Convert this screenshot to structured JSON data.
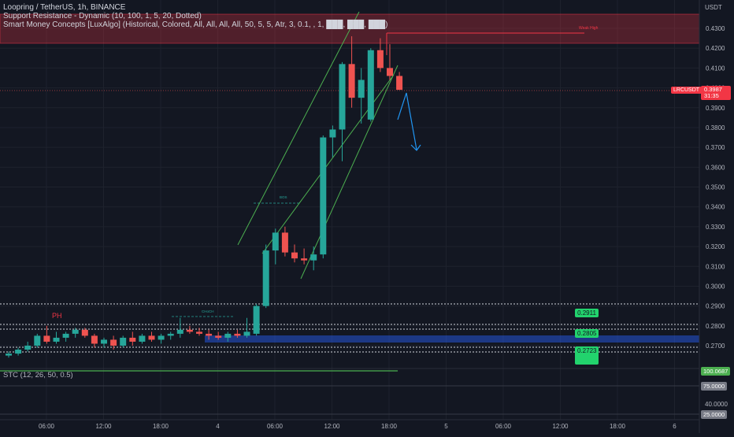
{
  "legend": {
    "title": "Loopring / TetherUS, 1h, BINANCE",
    "indicator1": "Support Resistance - Dynamic (10, 100, 1, 5, 20, Dotted)",
    "indicator2": "Smart Money Concepts [LuxAlgo] (Historical, Colored, All, All, All, All, 50, 5, 5, Atr, 3, 0.1, , 1, ███, ███, ███)"
  },
  "currency": "USDT",
  "symbol_tag": "LRCUSDT",
  "last_price": "0.3987",
  "countdown": "31:35",
  "weak_high_label": "Weak High",
  "ph_label": "PH",
  "bos_label_upper": "BOS",
  "choch_label": "CHoCH",
  "stc": {
    "label": "STC (12, 26, 50, 0.5)",
    "value_tag": "100.0687",
    "level_75": "75.0000",
    "level_25": "25.0000",
    "tick_40": "40.0000"
  },
  "sr_tags": [
    "0.2911",
    "0.2805",
    "0.2723"
  ],
  "price_ticks": [
    "0.4300",
    "0.4200",
    "0.4100",
    "0.4000",
    "0.3900",
    "0.3800",
    "0.3700",
    "0.3600",
    "0.3500",
    "0.3400",
    "0.3300",
    "0.3200",
    "0.3100",
    "0.3000",
    "0.2900",
    "0.2800",
    "0.2700"
  ],
  "time_ticks": [
    "06:00",
    "12:00",
    "18:00",
    "4",
    "06:00",
    "12:00",
    "18:00",
    "5",
    "06:00",
    "12:00",
    "18:00",
    "6"
  ],
  "colors": {
    "up": "#26a69a",
    "down": "#ef5350",
    "channel": "#4caf50",
    "zone": "#f23645",
    "bull_zone": "#2962ff",
    "arrow": "#2196f3",
    "sr_green": "#22d36d"
  },
  "chart_data": {
    "type": "candlestick",
    "symbol": "LRCUSDT",
    "timeframe": "1h",
    "ylim": [
      0.262,
      0.441
    ],
    "candles": [
      {
        "o": 0.265,
        "h": 0.267,
        "l": 0.264,
        "c": 0.266
      },
      {
        "o": 0.266,
        "h": 0.269,
        "l": 0.265,
        "c": 0.268
      },
      {
        "o": 0.268,
        "h": 0.272,
        "l": 0.267,
        "c": 0.27
      },
      {
        "o": 0.27,
        "h": 0.276,
        "l": 0.269,
        "c": 0.275
      },
      {
        "o": 0.275,
        "h": 0.28,
        "l": 0.271,
        "c": 0.272
      },
      {
        "o": 0.272,
        "h": 0.277,
        "l": 0.271,
        "c": 0.274
      },
      {
        "o": 0.274,
        "h": 0.277,
        "l": 0.272,
        "c": 0.276
      },
      {
        "o": 0.276,
        "h": 0.279,
        "l": 0.274,
        "c": 0.278
      },
      {
        "o": 0.278,
        "h": 0.279,
        "l": 0.274,
        "c": 0.275
      },
      {
        "o": 0.275,
        "h": 0.276,
        "l": 0.269,
        "c": 0.271
      },
      {
        "o": 0.271,
        "h": 0.274,
        "l": 0.269,
        "c": 0.273
      },
      {
        "o": 0.273,
        "h": 0.275,
        "l": 0.268,
        "c": 0.27
      },
      {
        "o": 0.27,
        "h": 0.275,
        "l": 0.269,
        "c": 0.274
      },
      {
        "o": 0.274,
        "h": 0.277,
        "l": 0.27,
        "c": 0.272
      },
      {
        "o": 0.272,
        "h": 0.276,
        "l": 0.271,
        "c": 0.275
      },
      {
        "o": 0.275,
        "h": 0.277,
        "l": 0.272,
        "c": 0.273
      },
      {
        "o": 0.273,
        "h": 0.276,
        "l": 0.271,
        "c": 0.275
      },
      {
        "o": 0.275,
        "h": 0.277,
        "l": 0.273,
        "c": 0.276
      },
      {
        "o": 0.276,
        "h": 0.284,
        "l": 0.274,
        "c": 0.278
      },
      {
        "o": 0.278,
        "h": 0.28,
        "l": 0.276,
        "c": 0.277
      },
      {
        "o": 0.277,
        "h": 0.279,
        "l": 0.275,
        "c": 0.276
      },
      {
        "o": 0.276,
        "h": 0.278,
        "l": 0.273,
        "c": 0.275
      },
      {
        "o": 0.275,
        "h": 0.277,
        "l": 0.273,
        "c": 0.274
      },
      {
        "o": 0.274,
        "h": 0.277,
        "l": 0.272,
        "c": 0.276
      },
      {
        "o": 0.276,
        "h": 0.278,
        "l": 0.274,
        "c": 0.275
      },
      {
        "o": 0.275,
        "h": 0.284,
        "l": 0.274,
        "c": 0.277
      },
      {
        "o": 0.276,
        "h": 0.291,
        "l": 0.275,
        "c": 0.29
      },
      {
        "o": 0.29,
        "h": 0.321,
        "l": 0.289,
        "c": 0.318
      },
      {
        "o": 0.318,
        "h": 0.329,
        "l": 0.311,
        "c": 0.327
      },
      {
        "o": 0.327,
        "h": 0.33,
        "l": 0.315,
        "c": 0.317
      },
      {
        "o": 0.317,
        "h": 0.321,
        "l": 0.312,
        "c": 0.314
      },
      {
        "o": 0.314,
        "h": 0.319,
        "l": 0.311,
        "c": 0.313
      },
      {
        "o": 0.313,
        "h": 0.32,
        "l": 0.308,
        "c": 0.316
      },
      {
        "o": 0.316,
        "h": 0.376,
        "l": 0.314,
        "c": 0.375
      },
      {
        "o": 0.375,
        "h": 0.381,
        "l": 0.365,
        "c": 0.379
      },
      {
        "o": 0.379,
        "h": 0.413,
        "l": 0.363,
        "c": 0.412
      },
      {
        "o": 0.412,
        "h": 0.426,
        "l": 0.39,
        "c": 0.395
      },
      {
        "o": 0.395,
        "h": 0.41,
        "l": 0.382,
        "c": 0.404
      },
      {
        "o": 0.384,
        "h": 0.42,
        "l": 0.383,
        "c": 0.419
      },
      {
        "o": 0.419,
        "h": 0.425,
        "l": 0.408,
        "c": 0.41
      },
      {
        "o": 0.41,
        "h": 0.422,
        "l": 0.404,
        "c": 0.406
      },
      {
        "o": 0.406,
        "h": 0.408,
        "l": 0.399,
        "c": 0.399
      }
    ],
    "support_resistance_levels": [
      0.2911,
      0.2805,
      0.2723
    ],
    "stc": {
      "value": 100.0687,
      "levels": [
        75,
        25
      ]
    }
  }
}
